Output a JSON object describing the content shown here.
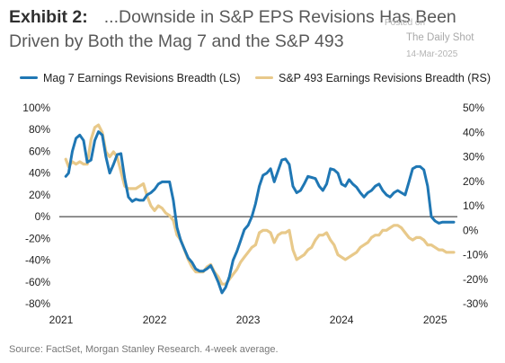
{
  "header": {
    "exhibit": "Exhibit 2:",
    "title": "...Downside in S&P EPS Revisions Has Been Driven by Both the Mag 7 and the S&P 493"
  },
  "watermark": {
    "posted": "Posted on",
    "name": "The Daily Shot",
    "date": "14-Mar-2025"
  },
  "source": "Source: FactSet, Morgan Stanley Research. 4-week average.",
  "colors": {
    "mag7": "#1f77b4",
    "sp493": "#e8c98a",
    "zero_line": "#222222"
  },
  "chart_data": {
    "type": "line",
    "title": "",
    "xlabel": "",
    "ylabel_left": "",
    "ylabel_right": "",
    "legend_position": "top",
    "grid": false,
    "xlim": [
      2021.0,
      2025.2
    ],
    "x_ticks": [
      "2021",
      "2022",
      "2023",
      "2024",
      "2025"
    ],
    "y_left": {
      "lim": [
        -80,
        100
      ],
      "ticks": [
        "100%",
        "80%",
        "60%",
        "40%",
        "20%",
        "0%",
        "-20%",
        "-40%",
        "-60%",
        "-80%"
      ]
    },
    "y_right": {
      "lim": [
        -30,
        50
      ],
      "ticks": [
        "50%",
        "40%",
        "30%",
        "20%",
        "10%",
        "0%",
        "-10%",
        "-20%",
        "-30%"
      ]
    },
    "series": [
      {
        "name": "Mag 7 Earnings Revisions Breadth (LS)",
        "axis": "left",
        "x": [
          2021.05,
          2021.08,
          2021.12,
          2021.16,
          2021.2,
          2021.24,
          2021.28,
          2021.32,
          2021.36,
          2021.4,
          2021.44,
          2021.48,
          2021.52,
          2021.56,
          2021.6,
          2021.64,
          2021.68,
          2021.72,
          2021.76,
          2021.8,
          2021.84,
          2021.88,
          2021.92,
          2021.96,
          2022.0,
          2022.04,
          2022.08,
          2022.12,
          2022.16,
          2022.2,
          2022.24,
          2022.28,
          2022.32,
          2022.36,
          2022.4,
          2022.44,
          2022.48,
          2022.52,
          2022.56,
          2022.6,
          2022.64,
          2022.68,
          2022.72,
          2022.76,
          2022.8,
          2022.84,
          2022.88,
          2022.92,
          2022.96,
          2023.0,
          2023.04,
          2023.08,
          2023.12,
          2023.16,
          2023.2,
          2023.24,
          2023.28,
          2023.32,
          2023.36,
          2023.4,
          2023.44,
          2023.48,
          2023.52,
          2023.56,
          2023.6,
          2023.64,
          2023.68,
          2023.72,
          2023.76,
          2023.8,
          2023.84,
          2023.88,
          2023.92,
          2023.96,
          2024.0,
          2024.04,
          2024.08,
          2024.12,
          2024.16,
          2024.2,
          2024.24,
          2024.28,
          2024.32,
          2024.36,
          2024.4,
          2024.44,
          2024.48,
          2024.52,
          2024.56,
          2024.6,
          2024.64,
          2024.68,
          2024.72,
          2024.76,
          2024.8,
          2024.84,
          2024.88,
          2024.92,
          2024.96,
          2025.0,
          2025.04,
          2025.08,
          2025.12,
          2025.16,
          2025.2
        ],
        "values": [
          37,
          40,
          60,
          72,
          75,
          70,
          50,
          52,
          70,
          78,
          75,
          55,
          40,
          48,
          57,
          58,
          35,
          18,
          14,
          16,
          15,
          15,
          20,
          22,
          25,
          30,
          32,
          32,
          32,
          15,
          -10,
          -22,
          -30,
          -38,
          -42,
          -48,
          -50,
          -50,
          -48,
          -45,
          -52,
          -60,
          -70,
          -65,
          -55,
          -40,
          -32,
          -22,
          -12,
          -8,
          0,
          12,
          28,
          38,
          40,
          44,
          32,
          42,
          52,
          53,
          48,
          28,
          22,
          24,
          30,
          37,
          36,
          35,
          28,
          24,
          30,
          44,
          43,
          40,
          30,
          28,
          34,
          30,
          27,
          22,
          18,
          22,
          24,
          28,
          30,
          24,
          20,
          18,
          22,
          24,
          22,
          20,
          32,
          44,
          46,
          46,
          43,
          28,
          0,
          -4,
          -6,
          -5,
          -5,
          -5,
          -5
        ]
      },
      {
        "name": "S&P 493 Earnings Revisions Breadth (RS)",
        "axis": "right",
        "x": [
          2021.05,
          2021.08,
          2021.12,
          2021.16,
          2021.2,
          2021.24,
          2021.28,
          2021.32,
          2021.36,
          2021.4,
          2021.44,
          2021.48,
          2021.52,
          2021.56,
          2021.6,
          2021.64,
          2021.68,
          2021.72,
          2021.76,
          2021.8,
          2021.84,
          2021.88,
          2021.92,
          2021.96,
          2022.0,
          2022.04,
          2022.08,
          2022.12,
          2022.16,
          2022.2,
          2022.24,
          2022.28,
          2022.32,
          2022.36,
          2022.4,
          2022.44,
          2022.48,
          2022.52,
          2022.56,
          2022.6,
          2022.64,
          2022.68,
          2022.72,
          2022.76,
          2022.8,
          2022.84,
          2022.88,
          2022.92,
          2022.96,
          2023.0,
          2023.04,
          2023.08,
          2023.12,
          2023.16,
          2023.2,
          2023.24,
          2023.28,
          2023.32,
          2023.36,
          2023.4,
          2023.44,
          2023.48,
          2023.52,
          2023.56,
          2023.6,
          2023.64,
          2023.68,
          2023.72,
          2023.76,
          2023.8,
          2023.84,
          2023.88,
          2023.92,
          2023.96,
          2024.0,
          2024.04,
          2024.08,
          2024.12,
          2024.16,
          2024.2,
          2024.24,
          2024.28,
          2024.32,
          2024.36,
          2024.4,
          2024.44,
          2024.48,
          2024.52,
          2024.56,
          2024.6,
          2024.64,
          2024.68,
          2024.72,
          2024.76,
          2024.8,
          2024.84,
          2024.88,
          2024.92,
          2024.96,
          2025.0,
          2025.04,
          2025.08,
          2025.12,
          2025.16,
          2025.2
        ],
        "values": [
          29,
          26,
          28,
          27,
          28,
          27,
          27,
          37,
          42,
          43,
          40,
          32,
          30,
          32,
          30,
          24,
          18,
          17,
          17,
          17,
          18,
          19,
          14,
          10,
          8,
          10,
          9,
          7,
          6,
          4,
          -2,
          -4,
          -8,
          -12,
          -15,
          -17,
          -17,
          -17,
          -15,
          -14,
          -17,
          -19,
          -22,
          -22,
          -20,
          -18,
          -16,
          -13,
          -11,
          -9,
          -7,
          -6,
          -1,
          0,
          0,
          -1,
          -5,
          -2,
          -1,
          -1,
          0,
          -8,
          -12,
          -11,
          -10,
          -8,
          -7,
          -4,
          -2,
          -2,
          -1,
          -4,
          -6,
          -10,
          -11,
          -12,
          -11,
          -10,
          -9,
          -7,
          -6,
          -5,
          -3,
          -2,
          -2,
          0,
          0,
          1,
          2,
          2,
          1,
          -1,
          -3,
          -4,
          -3,
          -3,
          -4,
          -6,
          -6,
          -7,
          -8,
          -8,
          -9,
          -9,
          -9
        ]
      }
    ]
  }
}
